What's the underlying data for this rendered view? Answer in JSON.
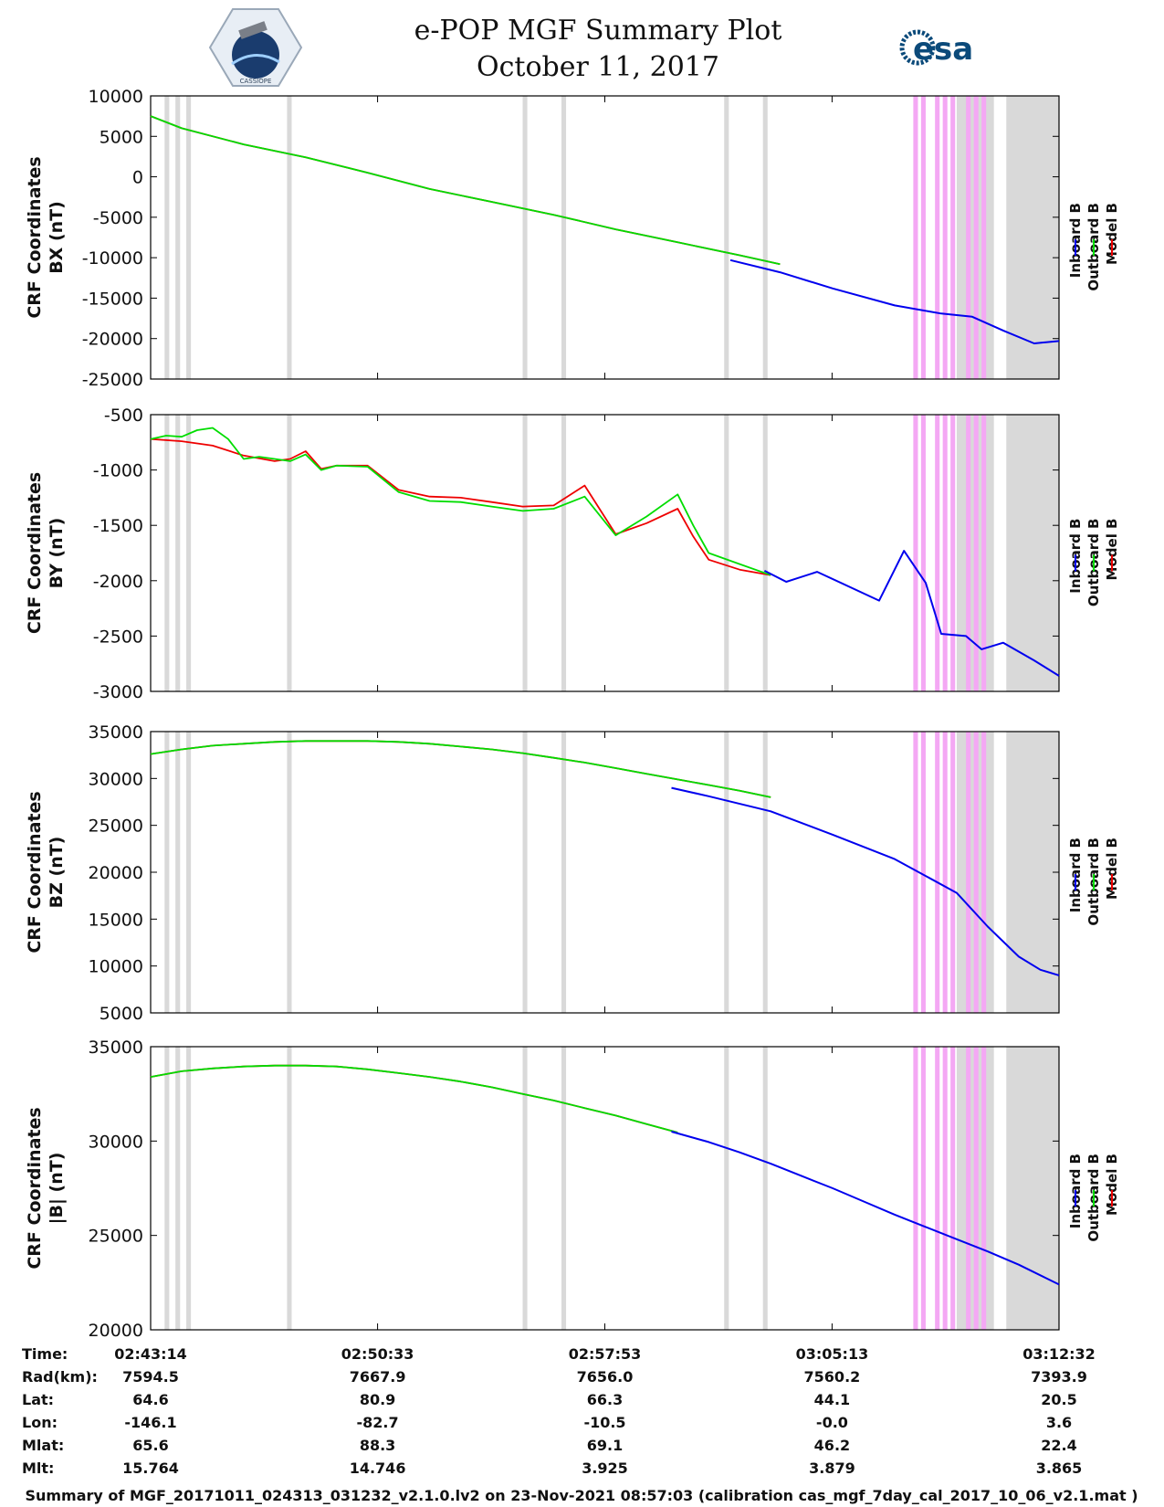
{
  "header": {
    "title": "e-POP MGF Summary Plot",
    "date": "October 11, 2017",
    "left_logo": "CASSIOPE",
    "right_logo": "esa"
  },
  "colors": {
    "inboard": "#0000ee",
    "outboard": "#00dd00",
    "model": "#ee0000",
    "gray_band": "#d9d9d9",
    "pink_band": "#f4a8f4"
  },
  "chart_data": [
    {
      "type": "line",
      "panel": "BX",
      "ylabel": [
        "CRF Coordinates",
        "BX (nT)"
      ],
      "ylim": [
        -25000,
        10000
      ],
      "yticks": [
        10000,
        5000,
        0,
        -5000,
        -10000,
        -15000,
        -20000,
        -25000
      ],
      "xlim_minutes": [
        0,
        29.3
      ],
      "legend": [
        "Inboard B",
        "Outboard B",
        "Model B"
      ],
      "series": [
        {
          "name": "Outboard B",
          "x": [
            0,
            1,
            3,
            5,
            7,
            9,
            11,
            13,
            15,
            17,
            19,
            20.3
          ],
          "y": [
            7500,
            6000,
            4000,
            2400,
            500,
            -1500,
            -3100,
            -4700,
            -6500,
            -8100,
            -9700,
            -10800
          ]
        },
        {
          "name": "Model B",
          "x": [
            0,
            1,
            3,
            5,
            7,
            9,
            11,
            13,
            15,
            17,
            19,
            20.3
          ],
          "y": [
            7500,
            6000,
            4000,
            2400,
            500,
            -1500,
            -3100,
            -4700,
            -6500,
            -8100,
            -9700,
            -10800
          ]
        },
        {
          "name": "Inboard B",
          "x": [
            18.7,
            20.3,
            22,
            24,
            25.5,
            26.5,
            27.5,
            28.5,
            29.3
          ],
          "y": [
            -10300,
            -11800,
            -13800,
            -15900,
            -16900,
            -17300,
            -19000,
            -20600,
            -20300
          ]
        }
      ]
    },
    {
      "type": "line",
      "panel": "BY",
      "ylabel": [
        "CRF Coordinates",
        "BY (nT)"
      ],
      "ylim": [
        -3000,
        -500
      ],
      "yticks": [
        -500,
        -1000,
        -1500,
        -2000,
        -2500,
        -3000
      ],
      "xlim_minutes": [
        0,
        29.3
      ],
      "legend": [
        "Inboard B",
        "Outboard B",
        "Model B"
      ],
      "series": [
        {
          "name": "Outboard B",
          "x": [
            0,
            0.5,
            1,
            1.5,
            2,
            2.5,
            3,
            3.5,
            4,
            4.5,
            5,
            5.5,
            6,
            7,
            8,
            9,
            10,
            11,
            12,
            13,
            14,
            15,
            16,
            17,
            17.5,
            18,
            19,
            20
          ],
          "y": [
            -720,
            -690,
            -700,
            -640,
            -620,
            -720,
            -900,
            -880,
            -900,
            -920,
            -860,
            -1000,
            -960,
            -970,
            -1200,
            -1280,
            -1290,
            -1330,
            -1370,
            -1350,
            -1240,
            -1590,
            -1420,
            -1220,
            -1500,
            -1750,
            -1850,
            -1950
          ]
        },
        {
          "name": "Model B",
          "x": [
            0,
            1,
            2,
            3,
            4,
            4.5,
            5,
            5.5,
            6,
            7,
            8,
            9,
            10,
            11,
            12,
            13,
            14,
            15,
            16,
            17,
            17.5,
            18,
            19,
            20
          ],
          "y": [
            -720,
            -740,
            -780,
            -870,
            -920,
            -900,
            -830,
            -990,
            -960,
            -960,
            -1180,
            -1240,
            -1250,
            -1290,
            -1330,
            -1320,
            -1140,
            -1580,
            -1480,
            -1350,
            -1600,
            -1810,
            -1900,
            -1950
          ]
        },
        {
          "name": "Inboard B",
          "x": [
            19.8,
            20.5,
            21.5,
            23.5,
            24.3,
            25,
            25.5,
            26.3,
            26.8,
            27.5,
            28.5,
            29.3
          ],
          "y": [
            -1910,
            -2010,
            -1920,
            -2180,
            -1730,
            -2020,
            -2480,
            -2500,
            -2620,
            -2560,
            -2720,
            -2860
          ]
        }
      ]
    },
    {
      "type": "line",
      "panel": "BZ",
      "ylabel": [
        "CRF Coordinates",
        "BZ (nT)"
      ],
      "ylim": [
        5000,
        35000
      ],
      "yticks": [
        35000,
        30000,
        25000,
        20000,
        15000,
        10000,
        5000
      ],
      "xlim_minutes": [
        0,
        29.3
      ],
      "legend": [
        "Inboard B",
        "Outboard B",
        "Model B"
      ],
      "series": [
        {
          "name": "Outboard B",
          "x": [
            0,
            1,
            2,
            3,
            4,
            5,
            6,
            7,
            8,
            9,
            10,
            11,
            12,
            13,
            14,
            15,
            16,
            17,
            18,
            19,
            20
          ],
          "y": [
            32600,
            33100,
            33500,
            33700,
            33900,
            34000,
            34000,
            34000,
            33900,
            33700,
            33400,
            33100,
            32700,
            32200,
            31700,
            31100,
            30500,
            29900,
            29300,
            28700,
            28000
          ]
        },
        {
          "name": "Model B",
          "x": [
            0,
            1,
            2,
            3,
            4,
            5,
            6,
            7,
            8,
            9,
            10,
            11,
            12,
            13,
            14,
            15,
            16,
            17,
            18,
            19,
            20
          ],
          "y": [
            32600,
            33100,
            33500,
            33700,
            33900,
            34000,
            34000,
            34000,
            33900,
            33700,
            33400,
            33100,
            32700,
            32200,
            31700,
            31100,
            30500,
            29900,
            29300,
            28700,
            28000
          ]
        },
        {
          "name": "Inboard B",
          "x": [
            16.8,
            18,
            20,
            22,
            24,
            25,
            26,
            27,
            28,
            28.7,
            29.3
          ],
          "y": [
            29000,
            28100,
            26500,
            24000,
            21400,
            19600,
            17800,
            14200,
            11000,
            9600,
            9000
          ]
        }
      ]
    },
    {
      "type": "line",
      "panel": "|B|",
      "ylabel": [
        "CRF Coordinates",
        "|B| (nT)"
      ],
      "ylim": [
        20000,
        35000
      ],
      "yticks": [
        35000,
        30000,
        25000,
        20000
      ],
      "xlim_minutes": [
        0,
        29.3
      ],
      "legend": [
        "Inboard B",
        "Outboard B",
        "Model B"
      ],
      "series": [
        {
          "name": "Outboard B",
          "x": [
            0,
            1,
            2,
            3,
            4,
            5,
            6,
            7,
            8,
            9,
            10,
            11,
            12,
            13,
            14,
            15,
            16,
            17
          ],
          "y": [
            33400,
            33700,
            33850,
            33950,
            34000,
            34000,
            33950,
            33800,
            33600,
            33400,
            33150,
            32850,
            32500,
            32150,
            31750,
            31350,
            30900,
            30450
          ]
        },
        {
          "name": "Model B",
          "x": [
            0,
            1,
            2,
            3,
            4,
            5,
            6,
            7,
            8,
            9,
            10,
            11,
            12,
            13,
            14,
            15,
            16,
            17
          ],
          "y": [
            33400,
            33700,
            33850,
            33950,
            34000,
            34000,
            33950,
            33800,
            33600,
            33400,
            33150,
            32850,
            32500,
            32150,
            31750,
            31350,
            30900,
            30450
          ]
        },
        {
          "name": "Inboard B",
          "x": [
            16.8,
            18,
            19,
            20,
            21,
            22,
            23,
            24,
            25,
            26,
            27,
            28,
            29.3
          ],
          "y": [
            30500,
            29950,
            29400,
            28800,
            28150,
            27500,
            26800,
            26100,
            25450,
            24800,
            24150,
            23450,
            22400
          ]
        }
      ]
    }
  ],
  "bands": {
    "gray": [
      [
        0.45,
        0.6
      ],
      [
        0.8,
        0.95
      ],
      [
        1.15,
        1.3
      ],
      [
        4.4,
        4.55
      ],
      [
        12.0,
        12.15
      ],
      [
        13.25,
        13.4
      ],
      [
        18.5,
        18.65
      ],
      [
        19.75,
        19.9
      ],
      [
        26.0,
        27.2
      ],
      [
        27.6,
        29.3
      ]
    ],
    "pink": [
      [
        24.6,
        24.75
      ],
      [
        24.85,
        25.0
      ],
      [
        25.3,
        25.45
      ],
      [
        25.55,
        25.7
      ],
      [
        25.8,
        25.95
      ],
      [
        26.3,
        26.45
      ],
      [
        26.55,
        26.7
      ],
      [
        26.8,
        26.95
      ]
    ]
  },
  "xaxis": {
    "tick_minutes": [
      0,
      7.32,
      14.65,
      21.98,
      29.3
    ]
  },
  "ephemeris": {
    "row_labels": [
      "Time:",
      "Rad(km):",
      "Lat:",
      "Lon:",
      "Mlat:",
      "Mlt:"
    ],
    "columns": [
      [
        "02:43:14",
        "7594.5",
        "64.6",
        "-146.1",
        "65.6",
        "15.764"
      ],
      [
        "02:50:33",
        "7667.9",
        "80.9",
        "-82.7",
        "88.3",
        "14.746"
      ],
      [
        "02:57:53",
        "7656.0",
        "66.3",
        "-10.5",
        "69.1",
        "3.925"
      ],
      [
        "03:05:13",
        "7560.2",
        "44.1",
        "-0.0",
        "46.2",
        "3.879"
      ],
      [
        "03:12:32",
        "7393.9",
        "20.5",
        "3.6",
        "22.4",
        "3.865"
      ]
    ]
  },
  "footer": "Summary of MGF_20171011_024313_031232_v2.1.0.lv2 on 23-Nov-2021 08:57:03 (calibration cas_mgf_7day_cal_2017_10_06_v2.1.mat )"
}
